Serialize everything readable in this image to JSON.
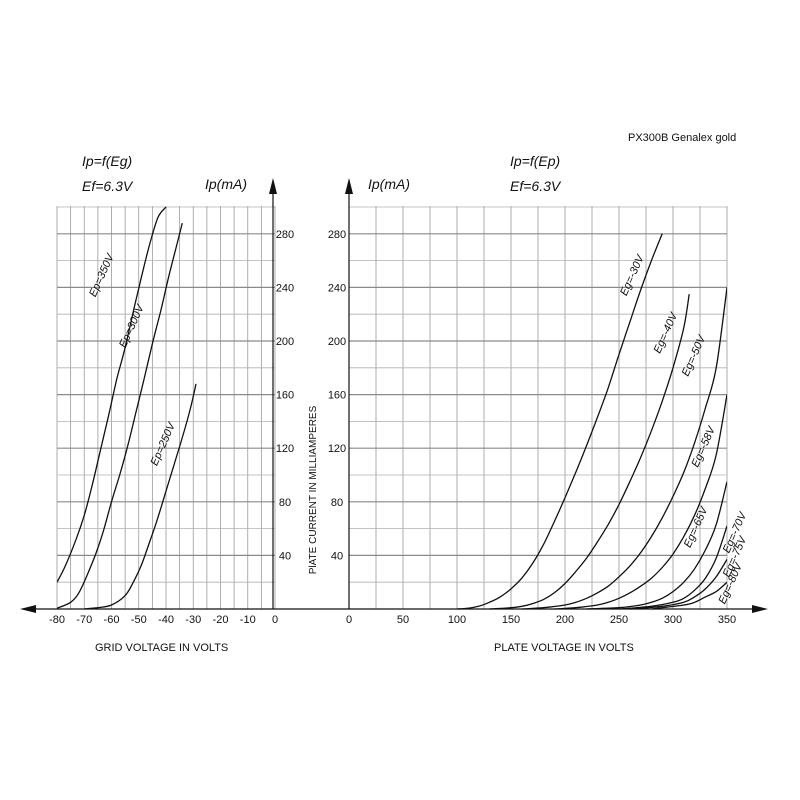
{
  "header": {
    "model": "PX300B Genalex gold"
  },
  "chart_data": [
    {
      "type": "line",
      "annotations": [
        "Ip=f(Eg)",
        "Ef=6.3V"
      ],
      "ylabel": "Ip(mA)",
      "xlabel": "GRID VOLTAGE IN VOLTS",
      "xlim": [
        -80,
        0
      ],
      "ylim": [
        0,
        300
      ],
      "x_ticks": [
        "-80",
        "-70",
        "-60",
        "-50",
        "-40",
        "-30",
        "-20",
        "-10",
        "0"
      ],
      "y_ticks": [
        "40",
        "80",
        "120",
        "160",
        "200",
        "240",
        "280"
      ],
      "grid": true,
      "series": [
        {
          "name": "Ep=350V",
          "label_x": -62.5,
          "label_y": 248,
          "x": [
            -80,
            -77,
            -73,
            -70,
            -67,
            -64,
            -61,
            -58,
            -55,
            -52,
            -49,
            -46,
            -43,
            -40
          ],
          "y": [
            20,
            32,
            52,
            70,
            93,
            119,
            145,
            172,
            195,
            222,
            248,
            272,
            292,
            300
          ]
        },
        {
          "name": "Ep=300V",
          "label_x": -51.5,
          "label_y": 210,
          "x": [
            -80,
            -75,
            -72,
            -69,
            -66,
            -63,
            -60,
            -57,
            -54,
            -51,
            -48,
            -45,
            -42,
            -39,
            -36,
            -34
          ],
          "y": [
            0.5,
            5,
            12,
            25,
            40,
            58,
            80,
            100,
            122,
            147,
            172,
            198,
            222,
            248,
            272,
            288
          ]
        },
        {
          "name": "Ep=250V",
          "label_x": -40,
          "label_y": 122,
          "x": [
            -70,
            -65,
            -60,
            -55,
            -52,
            -49,
            -46,
            -43,
            -40,
            -37,
            -34,
            -31,
            -29
          ],
          "y": [
            0,
            1,
            3,
            10,
            20,
            33,
            50,
            68,
            88,
            108,
            128,
            150,
            168
          ]
        }
      ]
    },
    {
      "type": "line",
      "annotations": [
        "Ip=f(Ep)",
        "Ef=6.3V"
      ],
      "ylabel": "Ip(mA)",
      "ylabel_axis": "PlATE CURRENT IN MILLIAMPERES",
      "xlabel": "PLATE VOLTAGE IN VOLTS",
      "xlim": [
        0,
        350
      ],
      "ylim": [
        0,
        300
      ],
      "x_ticks": [
        "0",
        "50",
        "100",
        "150",
        "200",
        "250",
        "300",
        "350"
      ],
      "y_ticks": [
        "40",
        "80",
        "120",
        "160",
        "200",
        "240",
        "280"
      ],
      "grid": true,
      "series": [
        {
          "name": "Eg=-30V",
          "label_x": 265,
          "label_y": 248,
          "x": [
            100,
            110,
            120,
            130,
            140,
            150,
            160,
            170,
            180,
            190,
            200,
            210,
            220,
            230,
            240,
            250,
            260,
            270,
            280,
            290
          ],
          "y": [
            0,
            0.5,
            2,
            5,
            9,
            15,
            23,
            34,
            48,
            65,
            83,
            102,
            122,
            143,
            165,
            190,
            214,
            238,
            260,
            280
          ]
        },
        {
          "name": "Eg=-40V",
          "label_x": 296,
          "label_y": 205,
          "x": [
            130,
            150,
            160,
            170,
            180,
            190,
            200,
            210,
            220,
            230,
            240,
            250,
            260,
            270,
            280,
            290,
            300,
            310,
            315
          ],
          "y": [
            0,
            1,
            2,
            4,
            7,
            12,
            19,
            28,
            38,
            50,
            63,
            78,
            95,
            113,
            133,
            155,
            180,
            210,
            235
          ]
        },
        {
          "name": "Eg=-50V",
          "label_x": 322,
          "label_y": 188,
          "x": [
            160,
            180,
            200,
            210,
            220,
            230,
            240,
            250,
            260,
            270,
            280,
            290,
            300,
            310,
            320,
            330,
            340,
            350
          ],
          "y": [
            0,
            1,
            3,
            5,
            8,
            12,
            17,
            24,
            32,
            42,
            54,
            68,
            84,
            102,
            124,
            150,
            180,
            240
          ]
        },
        {
          "name": "Eg=-58V",
          "label_x": 331,
          "label_y": 120,
          "x": [
            190,
            210,
            230,
            240,
            250,
            260,
            270,
            280,
            290,
            300,
            310,
            320,
            330,
            340,
            350
          ],
          "y": [
            0,
            1,
            3,
            5,
            8,
            12,
            17,
            23,
            31,
            41,
            54,
            70,
            90,
            115,
            160
          ]
        },
        {
          "name": "Eg=-65V",
          "label_x": 324,
          "label_y": 60,
          "x": [
            220,
            250,
            270,
            280,
            290,
            300,
            310,
            320,
            330,
            340,
            350
          ],
          "y": [
            0,
            1,
            3,
            5,
            8,
            13,
            20,
            30,
            44,
            63,
            95
          ]
        },
        {
          "name": "Eg=-70V",
          "label_x": 360,
          "label_y": 56,
          "x": [
            250,
            280,
            300,
            310,
            320,
            330,
            340,
            350
          ],
          "y": [
            0,
            2,
            5,
            8,
            14,
            23,
            38,
            62
          ]
        },
        {
          "name": "Eg=-75V",
          "label_x": 360,
          "label_y": 38,
          "x": [
            260,
            290,
            310,
            320,
            330,
            340,
            350
          ],
          "y": [
            0,
            2,
            5,
            9,
            15,
            24,
            37
          ]
        },
        {
          "name": "Eg=-80V",
          "label_x": 356,
          "label_y": 18,
          "x": [
            280,
            310,
            320,
            330,
            340,
            350
          ],
          "y": [
            0,
            3,
            5,
            9,
            13,
            20
          ]
        }
      ]
    }
  ]
}
